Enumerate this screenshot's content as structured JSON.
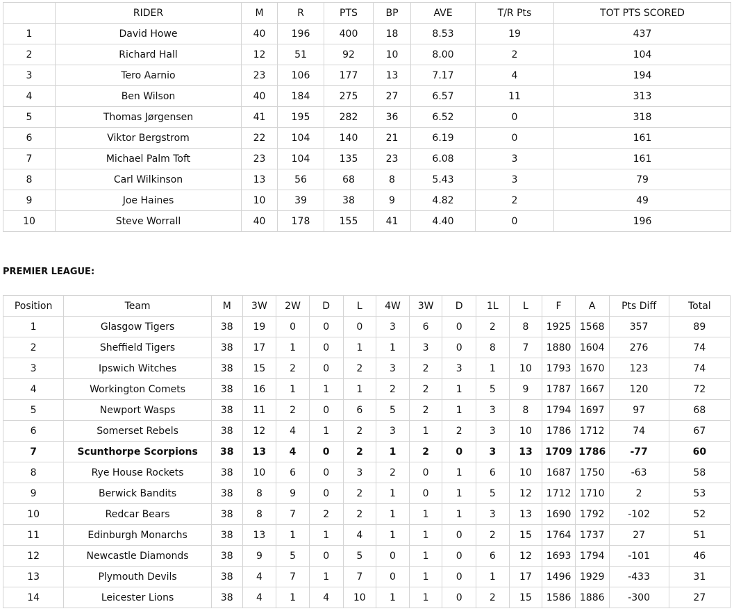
{
  "riders": {
    "headers": [
      "",
      "RIDER",
      "M",
      "R",
      "PTS",
      "BP",
      "AVE",
      "T/R Pts",
      "TOT PTS SCORED"
    ],
    "rows": [
      [
        "1",
        "David Howe",
        "40",
        "196",
        "400",
        "18",
        "8.53",
        "19",
        "437"
      ],
      [
        "2",
        "Richard Hall",
        "12",
        "51",
        "92",
        "10",
        "8.00",
        "2",
        "104"
      ],
      [
        "3",
        "Tero Aarnio",
        "23",
        "106",
        "177",
        "13",
        "7.17",
        "4",
        "194"
      ],
      [
        "4",
        "Ben Wilson",
        "40",
        "184",
        "275",
        "27",
        "6.57",
        "11",
        "313"
      ],
      [
        "5",
        "Thomas Jørgensen",
        "41",
        "195",
        "282",
        "36",
        "6.52",
        "0",
        "318"
      ],
      [
        "6",
        "Viktor Bergstrom",
        "22",
        "104",
        "140",
        "21",
        "6.19",
        "0",
        "161"
      ],
      [
        "7",
        "Michael Palm Toft",
        "23",
        "104",
        "135",
        "23",
        "6.08",
        "3",
        "161"
      ],
      [
        "8",
        "Carl Wilkinson",
        "13",
        "56",
        "68",
        "8",
        "5.43",
        "3",
        "79"
      ],
      [
        "9",
        "Joe Haines",
        "10",
        "39",
        "38",
        "9",
        "4.82",
        "2",
        "49"
      ],
      [
        "10",
        "Steve Worrall",
        "40",
        "178",
        "155",
        "41",
        "4.40",
        "0",
        "196"
      ]
    ]
  },
  "league": {
    "heading": "PREMIER LEAGUE:",
    "headers": [
      "Position",
      "Team",
      "M",
      "3W",
      "2W",
      "D",
      "L",
      "4W",
      "3W",
      "D",
      "1L",
      "L",
      "F",
      "A",
      "Pts Diff",
      "Total"
    ],
    "highlight_row": 6,
    "rows": [
      [
        "1",
        "Glasgow Tigers",
        "38",
        "19",
        "0",
        "0",
        "0",
        "3",
        "6",
        "0",
        "2",
        "8",
        "1925",
        "1568",
        "357",
        "89"
      ],
      [
        "2",
        "Sheffield Tigers",
        "38",
        "17",
        "1",
        "0",
        "1",
        "1",
        "3",
        "0",
        "8",
        "7",
        "1880",
        "1604",
        "276",
        "74"
      ],
      [
        "3",
        "Ipswich Witches",
        "38",
        "15",
        "2",
        "0",
        "2",
        "3",
        "2",
        "3",
        "1",
        "10",
        "1793",
        "1670",
        "123",
        "74"
      ],
      [
        "4",
        "Workington Comets",
        "38",
        "16",
        "1",
        "1",
        "1",
        "2",
        "2",
        "1",
        "5",
        "9",
        "1787",
        "1667",
        "120",
        "72"
      ],
      [
        "5",
        "Newport Wasps",
        "38",
        "11",
        "2",
        "0",
        "6",
        "5",
        "2",
        "1",
        "3",
        "8",
        "1794",
        "1697",
        "97",
        "68"
      ],
      [
        "6",
        "Somerset Rebels",
        "38",
        "12",
        "4",
        "1",
        "2",
        "3",
        "1",
        "2",
        "3",
        "10",
        "1786",
        "1712",
        "74",
        "67"
      ],
      [
        "7",
        "Scunthorpe Scorpions",
        "38",
        "13",
        "4",
        "0",
        "2",
        "1",
        "2",
        "0",
        "3",
        "13",
        "1709",
        "1786",
        "-77",
        "60"
      ],
      [
        "8",
        "Rye House Rockets",
        "38",
        "10",
        "6",
        "0",
        "3",
        "2",
        "0",
        "1",
        "6",
        "10",
        "1687",
        "1750",
        "-63",
        "58"
      ],
      [
        "9",
        "Berwick Bandits",
        "38",
        "8",
        "9",
        "0",
        "2",
        "1",
        "0",
        "1",
        "5",
        "12",
        "1712",
        "1710",
        "2",
        "53"
      ],
      [
        "10",
        "Redcar Bears",
        "38",
        "8",
        "7",
        "2",
        "2",
        "1",
        "1",
        "1",
        "3",
        "13",
        "1690",
        "1792",
        "-102",
        "52"
      ],
      [
        "11",
        "Edinburgh Monarchs",
        "38",
        "13",
        "1",
        "1",
        "4",
        "1",
        "1",
        "0",
        "2",
        "15",
        "1764",
        "1737",
        "27",
        "51"
      ],
      [
        "12",
        "Newcastle Diamonds",
        "38",
        "9",
        "5",
        "0",
        "5",
        "0",
        "1",
        "0",
        "6",
        "12",
        "1693",
        "1794",
        "-101",
        "46"
      ],
      [
        "13",
        "Plymouth Devils",
        "38",
        "4",
        "7",
        "1",
        "7",
        "0",
        "1",
        "0",
        "1",
        "17",
        "1496",
        "1929",
        "-433",
        "31"
      ],
      [
        "14",
        "Leicester Lions",
        "38",
        "4",
        "1",
        "4",
        "10",
        "1",
        "1",
        "0",
        "2",
        "15",
        "1586",
        "1886",
        "-300",
        "27"
      ]
    ]
  }
}
